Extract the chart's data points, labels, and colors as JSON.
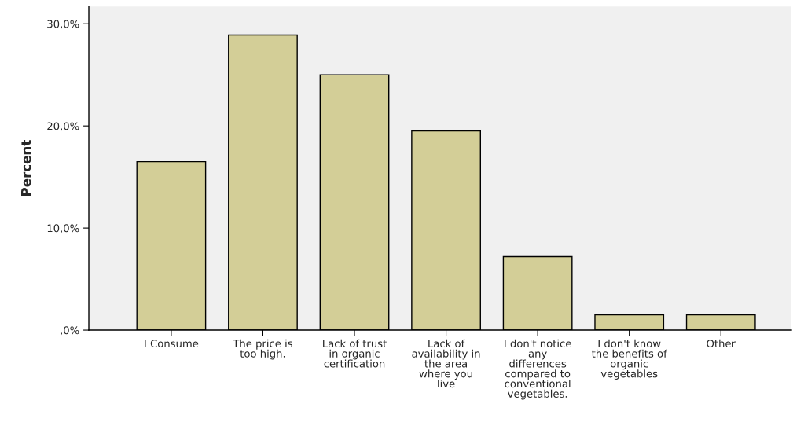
{
  "chart_data": {
    "type": "bar",
    "ylabel": "Percent",
    "categories": [
      "I Consume",
      "The price is\ntoo high.",
      "Lack of trust\nin organic\ncertification",
      "Lack of\navailability in\nthe area\nwhere you\nlive",
      "I don't notice\nany\ndifferences\ncompared to\nconventional\nvegetables.",
      "I don't know\nthe benefits of\norganic\nvegetables",
      "Other"
    ],
    "values": [
      16.5,
      28.9,
      25.0,
      19.5,
      7.2,
      1.5,
      1.5
    ],
    "color": "#d3ce97",
    "ylim": [
      0,
      31.7
    ],
    "yticks": [
      {
        "value": 0,
        "label": ",0%"
      },
      {
        "value": 10,
        "label": "10,0%"
      },
      {
        "value": 20,
        "label": "20,0%"
      },
      {
        "value": 30,
        "label": "30,0%"
      }
    ],
    "grid": false,
    "legend": false
  }
}
